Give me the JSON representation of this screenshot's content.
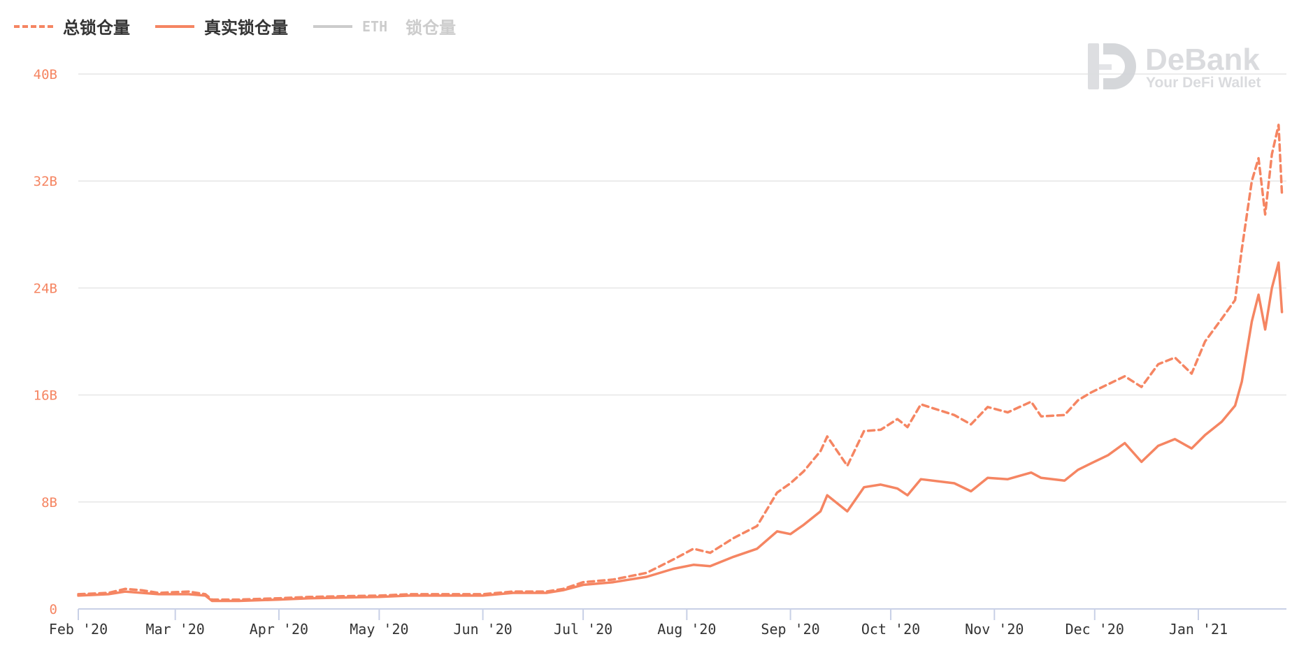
{
  "legend": {
    "total": "总锁仓量",
    "real": "真实锁仓量",
    "eth_prefix": "ETH",
    "eth_suffix": "锁仓量"
  },
  "watermark": {
    "title": "DeBank",
    "subtitle": "Your DeFi Wallet"
  },
  "colors": {
    "series": "#f58562",
    "disabled": "#cccccc",
    "grid": "#e6e6e6",
    "axis": "#c8d0e6"
  },
  "chart_data": {
    "type": "line",
    "xlabel": "",
    "ylabel": "",
    "ylim": [
      0,
      40
    ],
    "y_unit": "B",
    "y_ticks": [
      0,
      8,
      16,
      24,
      32,
      40
    ],
    "y_tick_labels": [
      "0",
      "8B",
      "16B",
      "24B",
      "32B",
      "40B"
    ],
    "x_range": [
      "2020-02-01",
      "2021-01-26"
    ],
    "x_ticks": [
      "2020-02-01",
      "2020-03-01",
      "2020-04-01",
      "2020-05-01",
      "2020-06-01",
      "2020-07-01",
      "2020-08-01",
      "2020-09-01",
      "2020-10-01",
      "2020-11-01",
      "2020-12-01",
      "2021-01-01"
    ],
    "x_tick_labels": [
      "Feb '20",
      "Mar '20",
      "Apr '20",
      "May '20",
      "Jun '20",
      "Jul '20",
      "Aug '20",
      "Sep '20",
      "Oct '20",
      "Nov '20",
      "Dec '20",
      "Jan '21"
    ],
    "grid": true,
    "legend_position": "top-left",
    "series": [
      {
        "name": "总锁仓量",
        "style": "dashed",
        "points": [
          [
            "2020-02-01",
            1.1
          ],
          [
            "2020-02-10",
            1.2
          ],
          [
            "2020-02-15",
            1.5
          ],
          [
            "2020-02-20",
            1.4
          ],
          [
            "2020-02-25",
            1.2
          ],
          [
            "2020-03-05",
            1.3
          ],
          [
            "2020-03-10",
            1.1
          ],
          [
            "2020-03-12",
            0.7
          ],
          [
            "2020-03-20",
            0.7
          ],
          [
            "2020-04-01",
            0.8
          ],
          [
            "2020-04-10",
            0.9
          ],
          [
            "2020-04-20",
            0.95
          ],
          [
            "2020-05-01",
            1.0
          ],
          [
            "2020-05-10",
            1.1
          ],
          [
            "2020-05-20",
            1.1
          ],
          [
            "2020-06-01",
            1.1
          ],
          [
            "2020-06-10",
            1.3
          ],
          [
            "2020-06-20",
            1.3
          ],
          [
            "2020-06-25",
            1.5
          ],
          [
            "2020-07-01",
            2.0
          ],
          [
            "2020-07-10",
            2.2
          ],
          [
            "2020-07-20",
            2.7
          ],
          [
            "2020-07-28",
            3.7
          ],
          [
            "2020-08-03",
            4.5
          ],
          [
            "2020-08-08",
            4.2
          ],
          [
            "2020-08-15",
            5.3
          ],
          [
            "2020-08-22",
            6.2
          ],
          [
            "2020-08-28",
            8.7
          ],
          [
            "2020-09-01",
            9.4
          ],
          [
            "2020-09-05",
            10.3
          ],
          [
            "2020-09-10",
            11.8
          ],
          [
            "2020-09-12",
            12.9
          ],
          [
            "2020-09-18",
            10.7
          ],
          [
            "2020-09-23",
            13.3
          ],
          [
            "2020-09-28",
            13.4
          ],
          [
            "2020-10-03",
            14.2
          ],
          [
            "2020-10-06",
            13.6
          ],
          [
            "2020-10-10",
            15.3
          ],
          [
            "2020-10-20",
            14.5
          ],
          [
            "2020-10-25",
            13.8
          ],
          [
            "2020-10-30",
            15.1
          ],
          [
            "2020-11-05",
            14.7
          ],
          [
            "2020-11-12",
            15.5
          ],
          [
            "2020-11-15",
            14.4
          ],
          [
            "2020-11-22",
            14.5
          ],
          [
            "2020-11-26",
            15.6
          ],
          [
            "2020-11-30",
            16.2
          ],
          [
            "2020-12-05",
            16.8
          ],
          [
            "2020-12-10",
            17.4
          ],
          [
            "2020-12-15",
            16.6
          ],
          [
            "2020-12-20",
            18.3
          ],
          [
            "2020-12-25",
            18.8
          ],
          [
            "2020-12-30",
            17.6
          ],
          [
            "2021-01-03",
            20.0
          ],
          [
            "2021-01-08",
            21.7
          ],
          [
            "2021-01-12",
            23.1
          ],
          [
            "2021-01-14",
            26.9
          ],
          [
            "2021-01-17",
            32.0
          ],
          [
            "2021-01-19",
            33.7
          ],
          [
            "2021-01-21",
            29.5
          ],
          [
            "2021-01-23",
            34.0
          ],
          [
            "2021-01-25",
            36.2
          ],
          [
            "2021-01-26",
            31.0
          ]
        ]
      },
      {
        "name": "真实锁仓量",
        "style": "solid",
        "points": [
          [
            "2020-02-01",
            1.0
          ],
          [
            "2020-02-10",
            1.1
          ],
          [
            "2020-02-15",
            1.3
          ],
          [
            "2020-02-20",
            1.2
          ],
          [
            "2020-02-25",
            1.1
          ],
          [
            "2020-03-05",
            1.1
          ],
          [
            "2020-03-10",
            1.0
          ],
          [
            "2020-03-12",
            0.6
          ],
          [
            "2020-03-20",
            0.6
          ],
          [
            "2020-04-01",
            0.7
          ],
          [
            "2020-04-10",
            0.8
          ],
          [
            "2020-04-20",
            0.85
          ],
          [
            "2020-05-01",
            0.9
          ],
          [
            "2020-05-10",
            1.0
          ],
          [
            "2020-05-20",
            1.0
          ],
          [
            "2020-06-01",
            1.0
          ],
          [
            "2020-06-10",
            1.2
          ],
          [
            "2020-06-20",
            1.2
          ],
          [
            "2020-06-25",
            1.4
          ],
          [
            "2020-07-01",
            1.8
          ],
          [
            "2020-07-10",
            2.0
          ],
          [
            "2020-07-20",
            2.4
          ],
          [
            "2020-07-28",
            3.0
          ],
          [
            "2020-08-03",
            3.3
          ],
          [
            "2020-08-08",
            3.2
          ],
          [
            "2020-08-15",
            3.9
          ],
          [
            "2020-08-22",
            4.5
          ],
          [
            "2020-08-28",
            5.8
          ],
          [
            "2020-09-01",
            5.6
          ],
          [
            "2020-09-05",
            6.3
          ],
          [
            "2020-09-10",
            7.3
          ],
          [
            "2020-09-12",
            8.5
          ],
          [
            "2020-09-18",
            7.3
          ],
          [
            "2020-09-23",
            9.1
          ],
          [
            "2020-09-28",
            9.3
          ],
          [
            "2020-10-03",
            9.0
          ],
          [
            "2020-10-06",
            8.5
          ],
          [
            "2020-10-10",
            9.7
          ],
          [
            "2020-10-20",
            9.4
          ],
          [
            "2020-10-25",
            8.8
          ],
          [
            "2020-10-30",
            9.8
          ],
          [
            "2020-11-05",
            9.7
          ],
          [
            "2020-11-12",
            10.2
          ],
          [
            "2020-11-15",
            9.8
          ],
          [
            "2020-11-22",
            9.6
          ],
          [
            "2020-11-26",
            10.4
          ],
          [
            "2020-11-30",
            10.9
          ],
          [
            "2020-12-05",
            11.5
          ],
          [
            "2020-12-10",
            12.4
          ],
          [
            "2020-12-15",
            11.0
          ],
          [
            "2020-12-20",
            12.2
          ],
          [
            "2020-12-25",
            12.7
          ],
          [
            "2020-12-30",
            12.0
          ],
          [
            "2021-01-03",
            13.0
          ],
          [
            "2021-01-08",
            14.0
          ],
          [
            "2021-01-12",
            15.2
          ],
          [
            "2021-01-14",
            17.0
          ],
          [
            "2021-01-17",
            21.5
          ],
          [
            "2021-01-19",
            23.5
          ],
          [
            "2021-01-21",
            20.9
          ],
          [
            "2021-01-23",
            24.0
          ],
          [
            "2021-01-25",
            25.9
          ],
          [
            "2021-01-26",
            22.2
          ]
        ]
      },
      {
        "name": "ETH 锁仓量",
        "visible": false,
        "points": []
      }
    ]
  }
}
